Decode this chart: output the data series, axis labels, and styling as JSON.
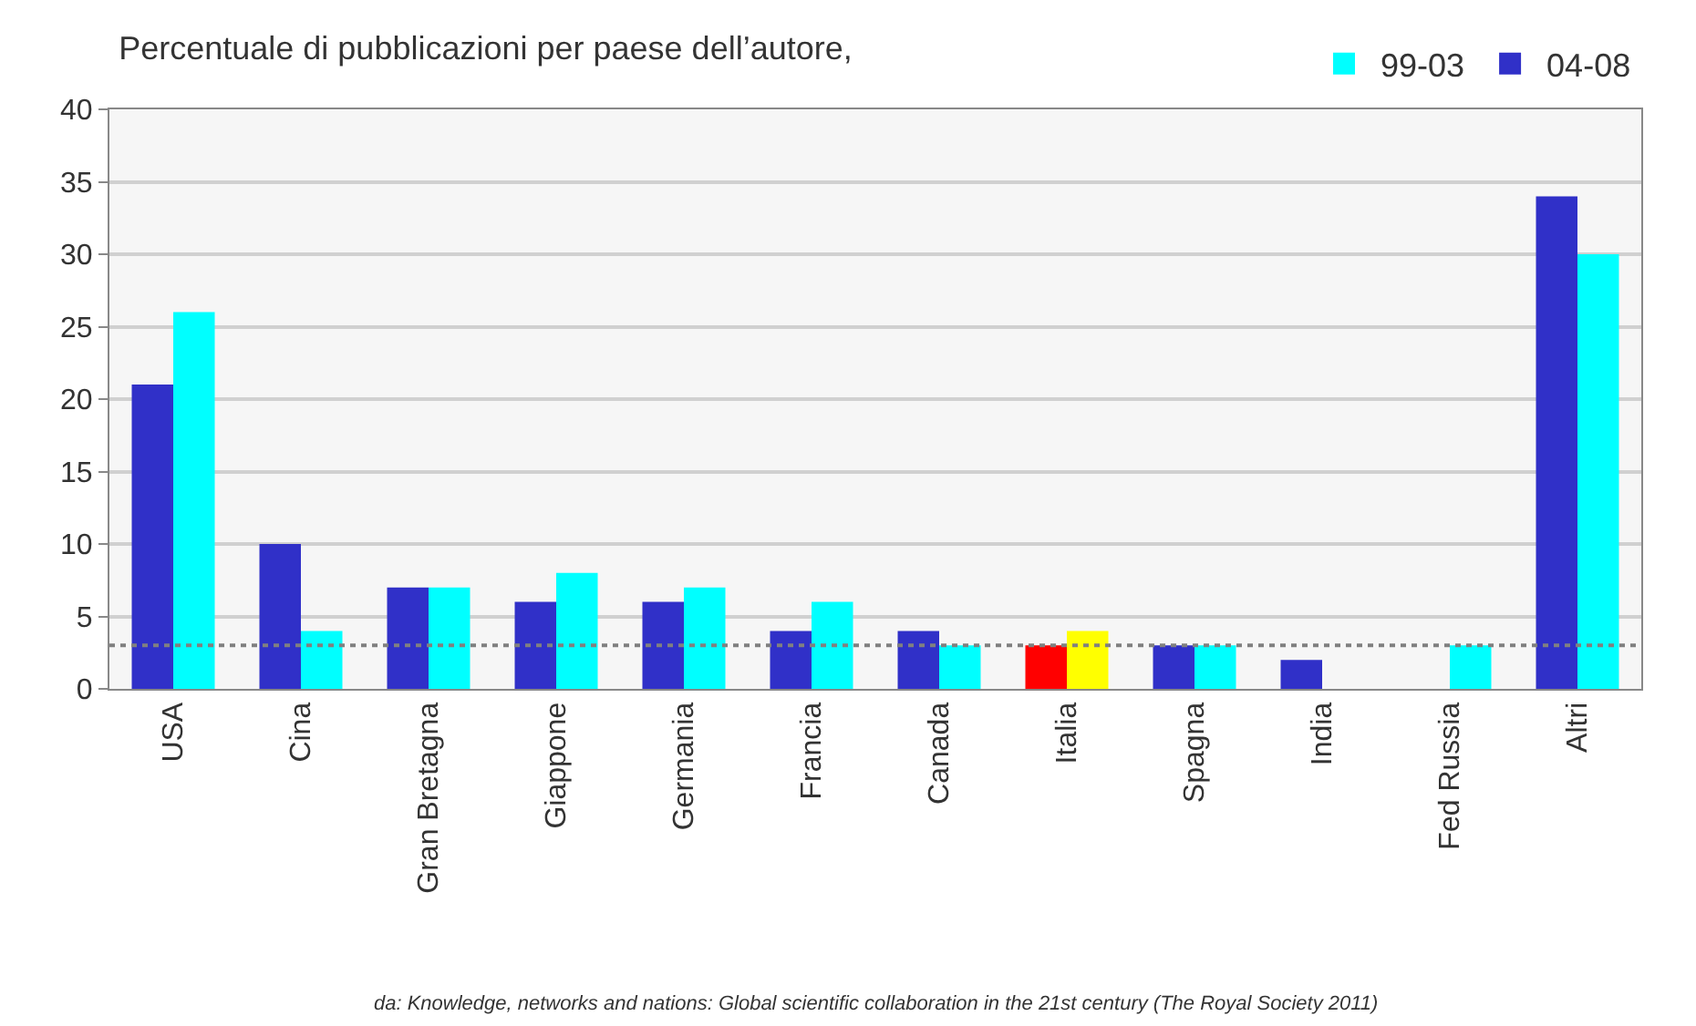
{
  "chart_data": {
    "type": "bar",
    "title": "Percentuale di pubblicazioni per paese dell’autore,",
    "categories": [
      "USA",
      "Cina",
      "Gran Bretagna",
      "Giappone",
      "Germania",
      "Francia",
      "Canada",
      "Italia",
      "Spagna",
      "India",
      "Fed Russia",
      "Altri"
    ],
    "series": [
      {
        "name": "04-08",
        "colors": [
          "#3030c8",
          "#3030c8",
          "#3030c8",
          "#3030c8",
          "#3030c8",
          "#3030c8",
          "#3030c8",
          "#ff0000",
          "#3030c8",
          "#3030c8",
          "#3030c8",
          "#3030c8"
        ],
        "values": [
          21,
          10,
          7,
          6,
          6,
          4,
          4,
          3,
          3,
          2,
          null,
          34
        ]
      },
      {
        "name": "99-03",
        "colors": [
          "#00ffff",
          "#00ffff",
          "#00ffff",
          "#00ffff",
          "#00ffff",
          "#00ffff",
          "#00ffff",
          "#ffff00",
          "#00ffff",
          "#00ffff",
          "#00ffff",
          "#00ffff"
        ],
        "values": [
          26,
          4,
          7,
          8,
          7,
          6,
          3,
          4,
          3,
          null,
          3,
          30
        ]
      }
    ],
    "ylim": [
      0,
      40
    ],
    "yticks": [
      0,
      5,
      10,
      15,
      20,
      25,
      30,
      35,
      40
    ],
    "grid": "y",
    "legend": "top right",
    "ref_lines": [
      {
        "axis": "y",
        "value": 3,
        "color": "#808080",
        "line_style": "dotted"
      }
    ],
    "annotations": [
      "da: Knowledge, networks and nations: Global scientific collaboration in the 21st century (The Royal Society 2011)"
    ]
  }
}
